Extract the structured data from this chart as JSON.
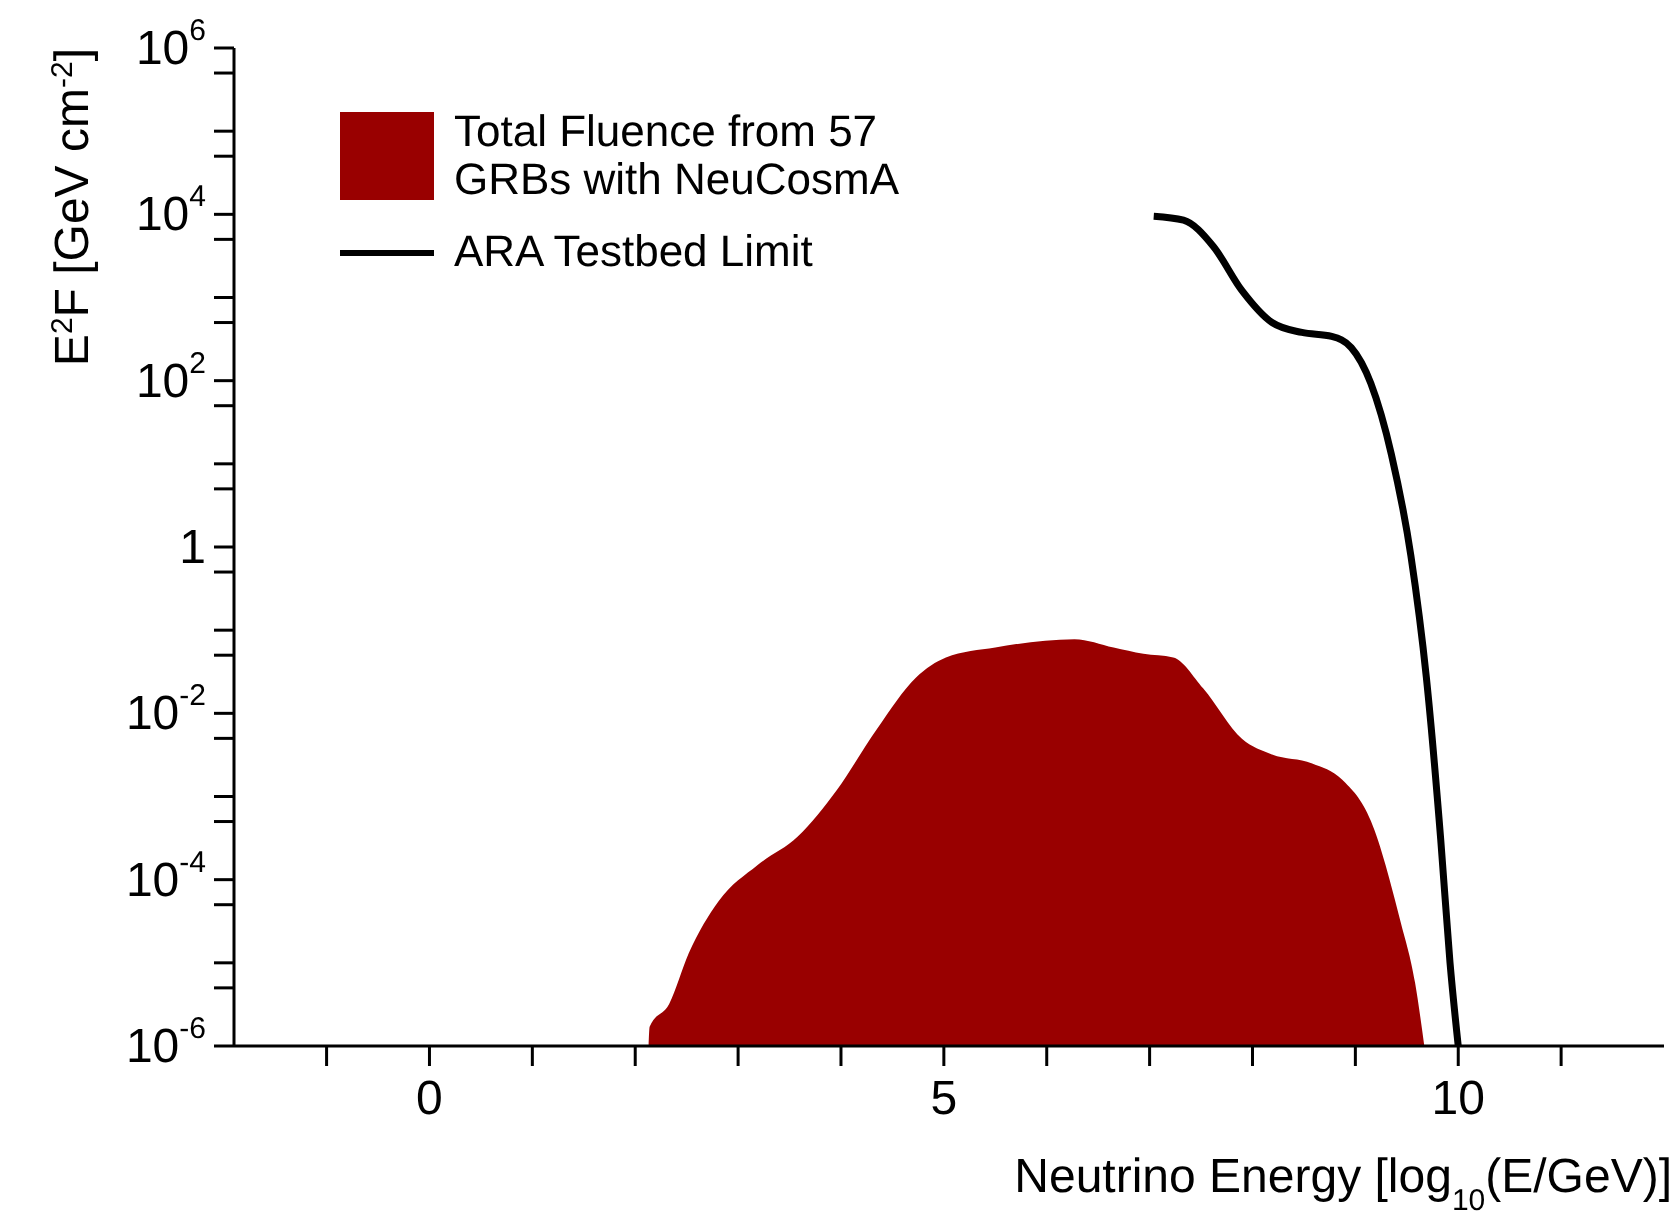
{
  "chart_data": {
    "type": "area",
    "xlabel": "Neutrino Energy [log$_{10}$(E/GeV)]",
    "ylabel": "E$^{2}$F [GeV cm$^{-2}$]",
    "log": "y",
    "legend": "top left",
    "xlim": [
      -1.9,
      12
    ],
    "xticks": [
      {
        "value": -1,
        "label": null
      },
      0,
      {
        "value": 1,
        "label": null
      },
      {
        "value": 2,
        "label": null
      },
      {
        "value": 3,
        "label": null
      },
      {
        "value": 4,
        "label": null
      },
      5,
      {
        "value": 6,
        "label": null
      },
      {
        "value": 7,
        "label": null
      },
      {
        "value": 8,
        "label": null
      },
      {
        "value": 9,
        "label": null
      },
      10,
      {
        "value": 11,
        "label": null
      }
    ],
    "ylim": [
      1e-06,
      1000000.0
    ],
    "yticks": [
      {
        "value": 1e-06,
        "label": "10$^{-6}$"
      },
      {
        "value": 5e-06,
        "label": null
      },
      {
        "value": 1e-05,
        "label": null
      },
      {
        "value": 5e-05,
        "label": null
      },
      {
        "value": 0.0001,
        "label": "10$^{-4}$"
      },
      {
        "value": 0.0005,
        "label": null
      },
      {
        "value": 0.001,
        "label": null
      },
      {
        "value": 0.005,
        "label": null
      },
      {
        "value": 0.01,
        "label": "10$^{-2}$"
      },
      {
        "value": 0.05,
        "label": null
      },
      {
        "value": 0.1,
        "label": null
      },
      {
        "value": 0.5,
        "label": null
      },
      1,
      {
        "value": 5,
        "label": null
      },
      {
        "value": 10,
        "label": null
      },
      {
        "value": 50,
        "label": null
      },
      {
        "value": 100,
        "label": "10$^{2}$"
      },
      {
        "value": 500,
        "label": null
      },
      {
        "value": 1000,
        "label": null
      },
      {
        "value": 5000,
        "label": null
      },
      {
        "value": 10000,
        "label": "10$^{4}$"
      },
      {
        "value": 50000,
        "label": null
      },
      {
        "value": 100000,
        "label": null
      },
      {
        "value": 500000,
        "label": null
      },
      {
        "value": 1000000,
        "label": "10$^{6}$"
      }
    ],
    "series": [
      {
        "name": "Total Fluence from 57 GRBs with NeuCosmA",
        "type": "area",
        "color": "#990000",
        "x": [
          2.13,
          2.14,
          2.33,
          2.52,
          2.81,
          3.19,
          3.58,
          3.96,
          4.35,
          4.73,
          5.02,
          5.5,
          6.27,
          6.65,
          6.94,
          7.23,
          7.52,
          7.9,
          8.19,
          8.58,
          8.87,
          9.15,
          9.44,
          9.58,
          9.67
        ],
        "values": [
          1e-06,
          1.7e-06,
          3.2e-06,
          1.3e-05,
          5.5e-05,
          0.00015,
          0.00033,
          0.0012,
          0.0065,
          0.027,
          0.047,
          0.062,
          0.078,
          0.062,
          0.052,
          0.047,
          0.02,
          0.0049,
          0.0032,
          0.0025,
          0.0016,
          0.00051,
          3.1e-05,
          5.8e-06,
          1e-06
        ]
      },
      {
        "name": "ARA Testbed Limit",
        "type": "line",
        "color": "#000000",
        "x": [
          7.04,
          7.33,
          7.62,
          7.9,
          8.19,
          8.48,
          8.77,
          8.96,
          9.15,
          9.35,
          9.54,
          9.69,
          9.83,
          9.92,
          10.0
        ],
        "values": [
          9500,
          8500,
          4100,
          1200,
          500,
          380,
          340,
          250,
          93,
          13,
          0.78,
          0.027,
          0.0003,
          1e-05,
          1e-06
        ]
      }
    ]
  }
}
